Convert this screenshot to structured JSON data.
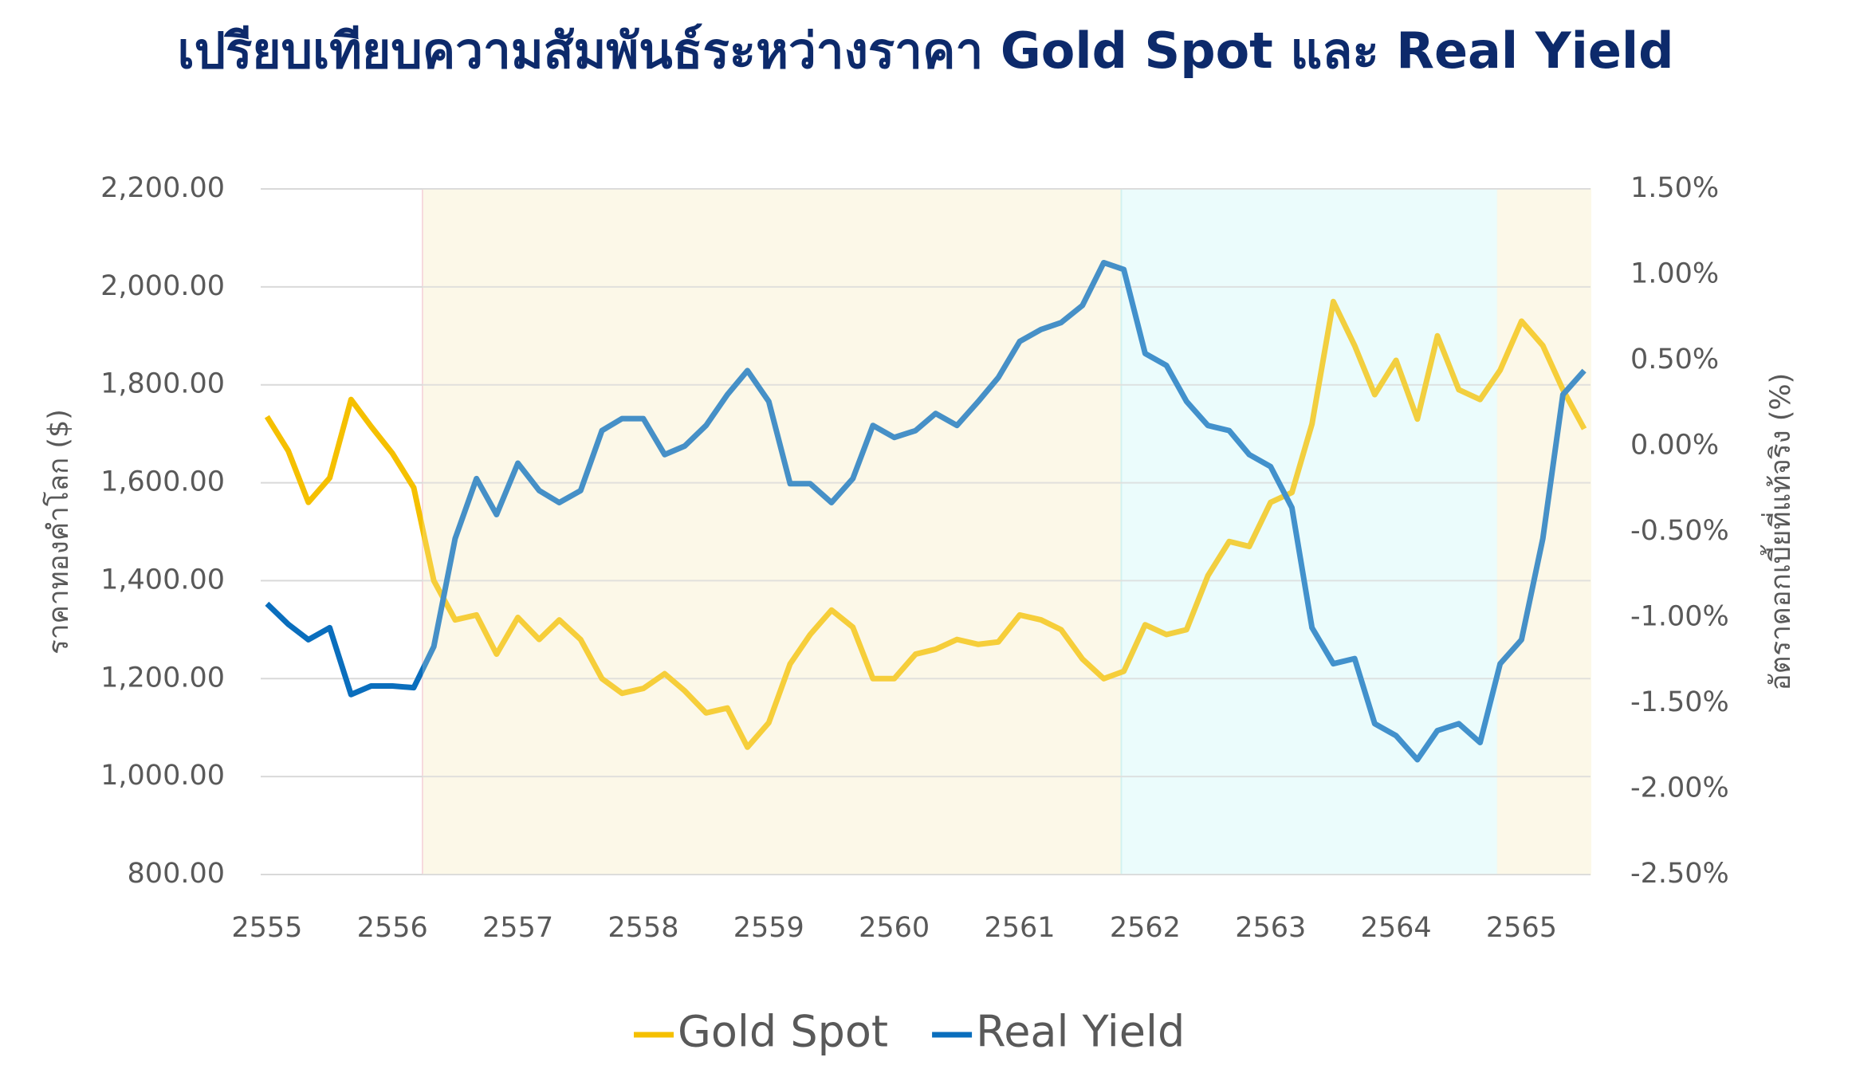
{
  "chart_data": {
    "type": "line",
    "title": "เปรียบเทียบความสัมพันธ์ระหว่างราคา Gold Spot และ Real Yield",
    "y_label": "ราคาทองคำโลก ($)",
    "y2_label": "อัตราดอกเบี้ยที่แท้จริง (%)",
    "x": [
      2555,
      2555.17,
      2555.33,
      2555.5,
      2555.67,
      2555.83,
      2556,
      2556.17,
      2556.33,
      2556.5,
      2556.67,
      2556.83,
      2557,
      2557.17,
      2557.33,
      2557.5,
      2557.67,
      2557.83,
      2558,
      2558.17,
      2558.33,
      2558.5,
      2558.67,
      2558.83,
      2559,
      2559.17,
      2559.33,
      2559.5,
      2559.67,
      2559.83,
      2560,
      2560.17,
      2560.33,
      2560.5,
      2560.67,
      2560.83,
      2561,
      2561.17,
      2561.33,
      2561.5,
      2561.67,
      2561.83,
      2562,
      2562.17,
      2562.33,
      2562.5,
      2562.67,
      2562.83,
      2563,
      2563.17,
      2563.33,
      2563.5,
      2563.67,
      2563.83,
      2564,
      2564.17,
      2564.33,
      2564.5,
      2564.67,
      2564.83,
      2565,
      2565.17,
      2565.33,
      2565.5
    ],
    "series": [
      {
        "name": "Gold Spot",
        "color": "#f5c000",
        "values": [
          1735,
          1665,
          1560,
          1610,
          1770,
          1715,
          1660,
          1590,
          1400,
          1320,
          1330,
          1250,
          1325,
          1280,
          1320,
          1280,
          1200,
          1170,
          1180,
          1210,
          1175,
          1130,
          1140,
          1060,
          1110,
          1230,
          1290,
          1340,
          1305,
          1200,
          1200,
          1250,
          1260,
          1280,
          1270,
          1275,
          1330,
          1320,
          1300,
          1240,
          1200,
          1215,
          1310,
          1290,
          1300,
          1410,
          1480,
          1470,
          1560,
          1580,
          1720,
          1970,
          1880,
          1780,
          1850,
          1730,
          1900,
          1790,
          1770,
          1830,
          1930,
          1880,
          1790,
          1710
        ]
      },
      {
        "name": "Real Yield",
        "color": "#0a6ebd",
        "axis": "y2",
        "values": [
          -0.92,
          -1.04,
          -1.13,
          -1.06,
          -1.45,
          -1.4,
          -1.4,
          -1.41,
          -1.17,
          -0.54,
          -0.19,
          -0.4,
          -0.1,
          -0.26,
          -0.33,
          -0.26,
          0.09,
          0.16,
          0.16,
          -0.05,
          0.0,
          0.12,
          0.3,
          0.44,
          0.26,
          -0.22,
          -0.22,
          -0.33,
          -0.19,
          0.12,
          0.05,
          0.09,
          0.19,
          0.12,
          0.26,
          0.4,
          0.61,
          0.68,
          0.72,
          0.82,
          1.07,
          1.03,
          0.54,
          0.47,
          0.26,
          0.12,
          0.09,
          -0.05,
          -0.12,
          -0.36,
          -1.06,
          -1.27,
          -1.24,
          -1.62,
          -1.69,
          -1.83,
          -1.66,
          -1.62,
          -1.73,
          -1.27,
          -1.13,
          -0.54,
          0.3,
          0.44
        ]
      }
    ],
    "xlim": [
      2554.95,
      2565.55
    ],
    "xticks": [
      2555,
      2556,
      2557,
      2558,
      2559,
      2560,
      2561,
      2562,
      2563,
      2564,
      2565
    ],
    "ylim": [
      800,
      2200
    ],
    "yticks": [
      {
        "value": 800,
        "label": "800.00"
      },
      {
        "value": 1000,
        "label": "1,000.00"
      },
      {
        "value": 1200,
        "label": "1,200.00"
      },
      {
        "value": 1400,
        "label": "1,400.00"
      },
      {
        "value": 1600,
        "label": "1,600.00"
      },
      {
        "value": 1800,
        "label": "1,800.00"
      },
      {
        "value": 2000,
        "label": "2,000.00"
      },
      {
        "value": 2200,
        "label": "2,200.00"
      }
    ],
    "y2lim": [
      -2.5,
      1.5
    ],
    "y2ticks": [
      {
        "value": -2.5,
        "label": "-2.50%"
      },
      {
        "value": -2,
        "label": "-2.00%"
      },
      {
        "value": -1.5,
        "label": "-1.50%"
      },
      {
        "value": -1,
        "label": "-1.00%"
      },
      {
        "value": -0.5,
        "label": "-0.50%"
      },
      {
        "value": 0,
        "label": "0.00%"
      },
      {
        "value": 0.5,
        "label": "0.50%"
      },
      {
        "value": 1,
        "label": "1.00%"
      },
      {
        "value": 1.5,
        "label": "1.50%"
      }
    ],
    "grid": true,
    "legend": "bottom",
    "shaded_regions": [
      {
        "xlim": [
          2556.24,
          2561.81
        ],
        "color": "#fcf9e8",
        "border": "#f6d6dc"
      },
      {
        "xlim": [
          2561.81,
          2564.81
        ],
        "color": "#ebfcfc",
        "border": "#c8f0f0"
      },
      {
        "xlim": [
          2564.81,
          2565.55
        ],
        "color": "#fcf9e8",
        "border": "#fcf9e8"
      }
    ]
  }
}
